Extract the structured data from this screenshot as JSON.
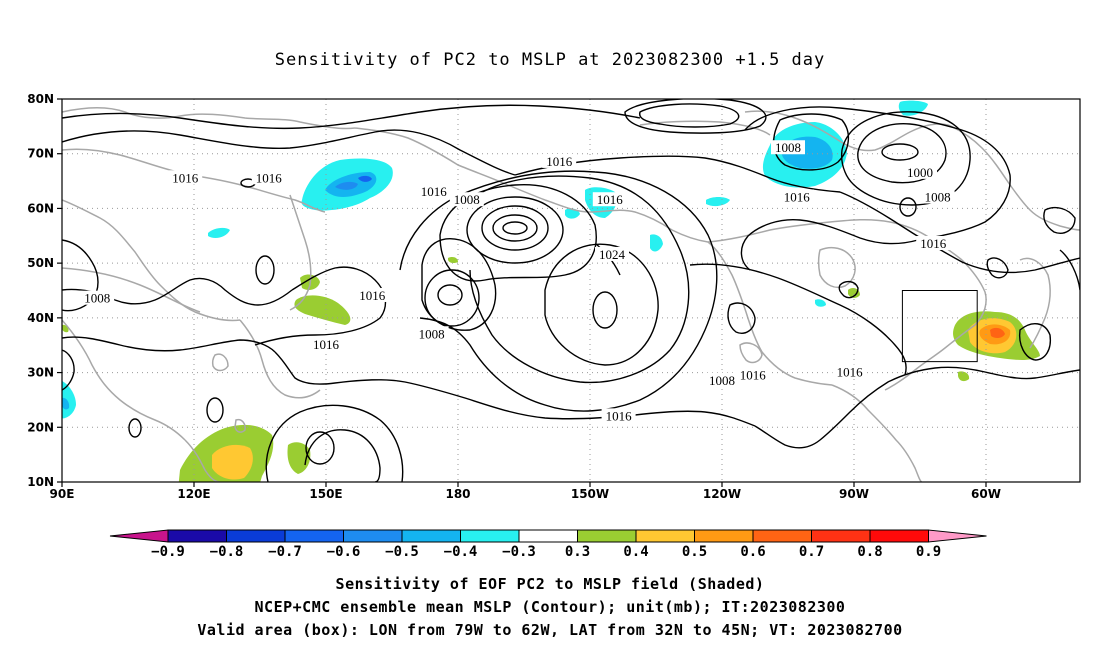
{
  "title": "Sensitivity of PC2 to MSLP at 2023082300 +1.5 day",
  "lat_labels": [
    "80N",
    "70N",
    "60N",
    "50N",
    "40N",
    "30N",
    "20N",
    "10N"
  ],
  "lon_labels": [
    "90E",
    "120E",
    "150E",
    "180",
    "150W",
    "120W",
    "90W",
    "60W"
  ],
  "contour_labels": [
    {
      "text": "1016",
      "lon": 118,
      "lat": 65.5
    },
    {
      "text": "1016",
      "lon": 137,
      "lat": 65.5
    },
    {
      "text": "1016",
      "lon": 174.5,
      "lat": 63
    },
    {
      "text": "1008",
      "lon": 182,
      "lat": 61.5
    },
    {
      "text": "1016",
      "lon": 203,
      "lat": 68.5
    },
    {
      "text": "1016",
      "lon": 214.5,
      "lat": 61.5
    },
    {
      "text": "1024",
      "lon": 215,
      "lat": 51.5
    },
    {
      "text": "1008",
      "lon": 255,
      "lat": 71
    },
    {
      "text": "1000",
      "lon": 285,
      "lat": 66.5
    },
    {
      "text": "1016",
      "lon": 257,
      "lat": 62
    },
    {
      "text": "1008",
      "lon": 289,
      "lat": 62
    },
    {
      "text": "1016",
      "lon": 288,
      "lat": 53.5
    },
    {
      "text": "1016",
      "lon": 160.5,
      "lat": 44
    },
    {
      "text": "1008",
      "lon": 98,
      "lat": 43.5
    },
    {
      "text": "1016",
      "lon": 150,
      "lat": 35
    },
    {
      "text": "1008",
      "lon": 174,
      "lat": 37
    },
    {
      "text": "1008",
      "lon": 240,
      "lat": 28.5
    },
    {
      "text": "1016",
      "lon": 247,
      "lat": 29.5
    },
    {
      "text": "1016",
      "lon": 269,
      "lat": 30
    },
    {
      "text": "1016",
      "lon": 216.5,
      "lat": 22
    }
  ],
  "valid_box": {
    "lon_w": -79,
    "lon_e": -62,
    "lat_s": 32,
    "lat_n": 45
  },
  "colorbar": {
    "labels": [
      "-0.9",
      "-0.8",
      "-0.7",
      "-0.6",
      "-0.5",
      "-0.4",
      "-0.3",
      "0.3",
      "0.4",
      "0.5",
      "0.6",
      "0.7",
      "0.8",
      "0.9"
    ],
    "colors": [
      "#1a0aa8",
      "#0a3cd8",
      "#1464f0",
      "#1e8cf0",
      "#14b4f0",
      "#28f0f0",
      "#ffffff",
      "#9acd32",
      "#ffc832",
      "#ff9a14",
      "#ff6414",
      "#ff3214",
      "#ff0a0a"
    ],
    "left_tip_color": "#c8148c",
    "right_tip_color": "#ff9ac8"
  },
  "captions": [
    "Sensitivity of EOF PC2 to MSLP field (Shaded)",
    "NCEP+CMC ensemble mean MSLP (Contour); unit(mb); IT:2023082300",
    "Valid area (box): LON from 79W to 62W, LAT from 32N to 45N; VT: 2023082700"
  ]
}
